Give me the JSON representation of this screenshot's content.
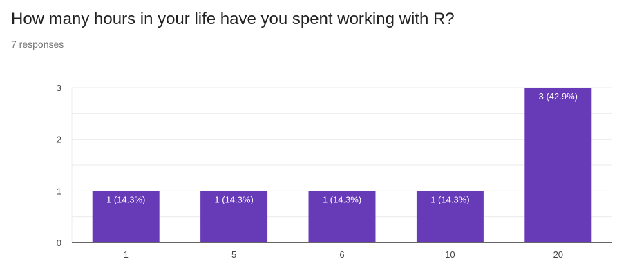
{
  "header": {
    "question": "How many hours in your life have you spent working with R?",
    "responses": "7 responses"
  },
  "colors": {
    "bar": "#673ab7",
    "grid": "#ebebeb",
    "axis": "#333333"
  },
  "chart_data": {
    "type": "bar",
    "categories": [
      "1",
      "5",
      "6",
      "10",
      "20"
    ],
    "values": [
      1,
      1,
      1,
      1,
      3
    ],
    "data_labels": [
      "1 (14.3%)",
      "1 (14.3%)",
      "1 (14.3%)",
      "1 (14.3%)",
      "3 (42.9%)"
    ],
    "ylim": [
      0,
      3
    ],
    "yticks": [
      "0",
      "1",
      "2",
      "3"
    ],
    "grid": true
  }
}
